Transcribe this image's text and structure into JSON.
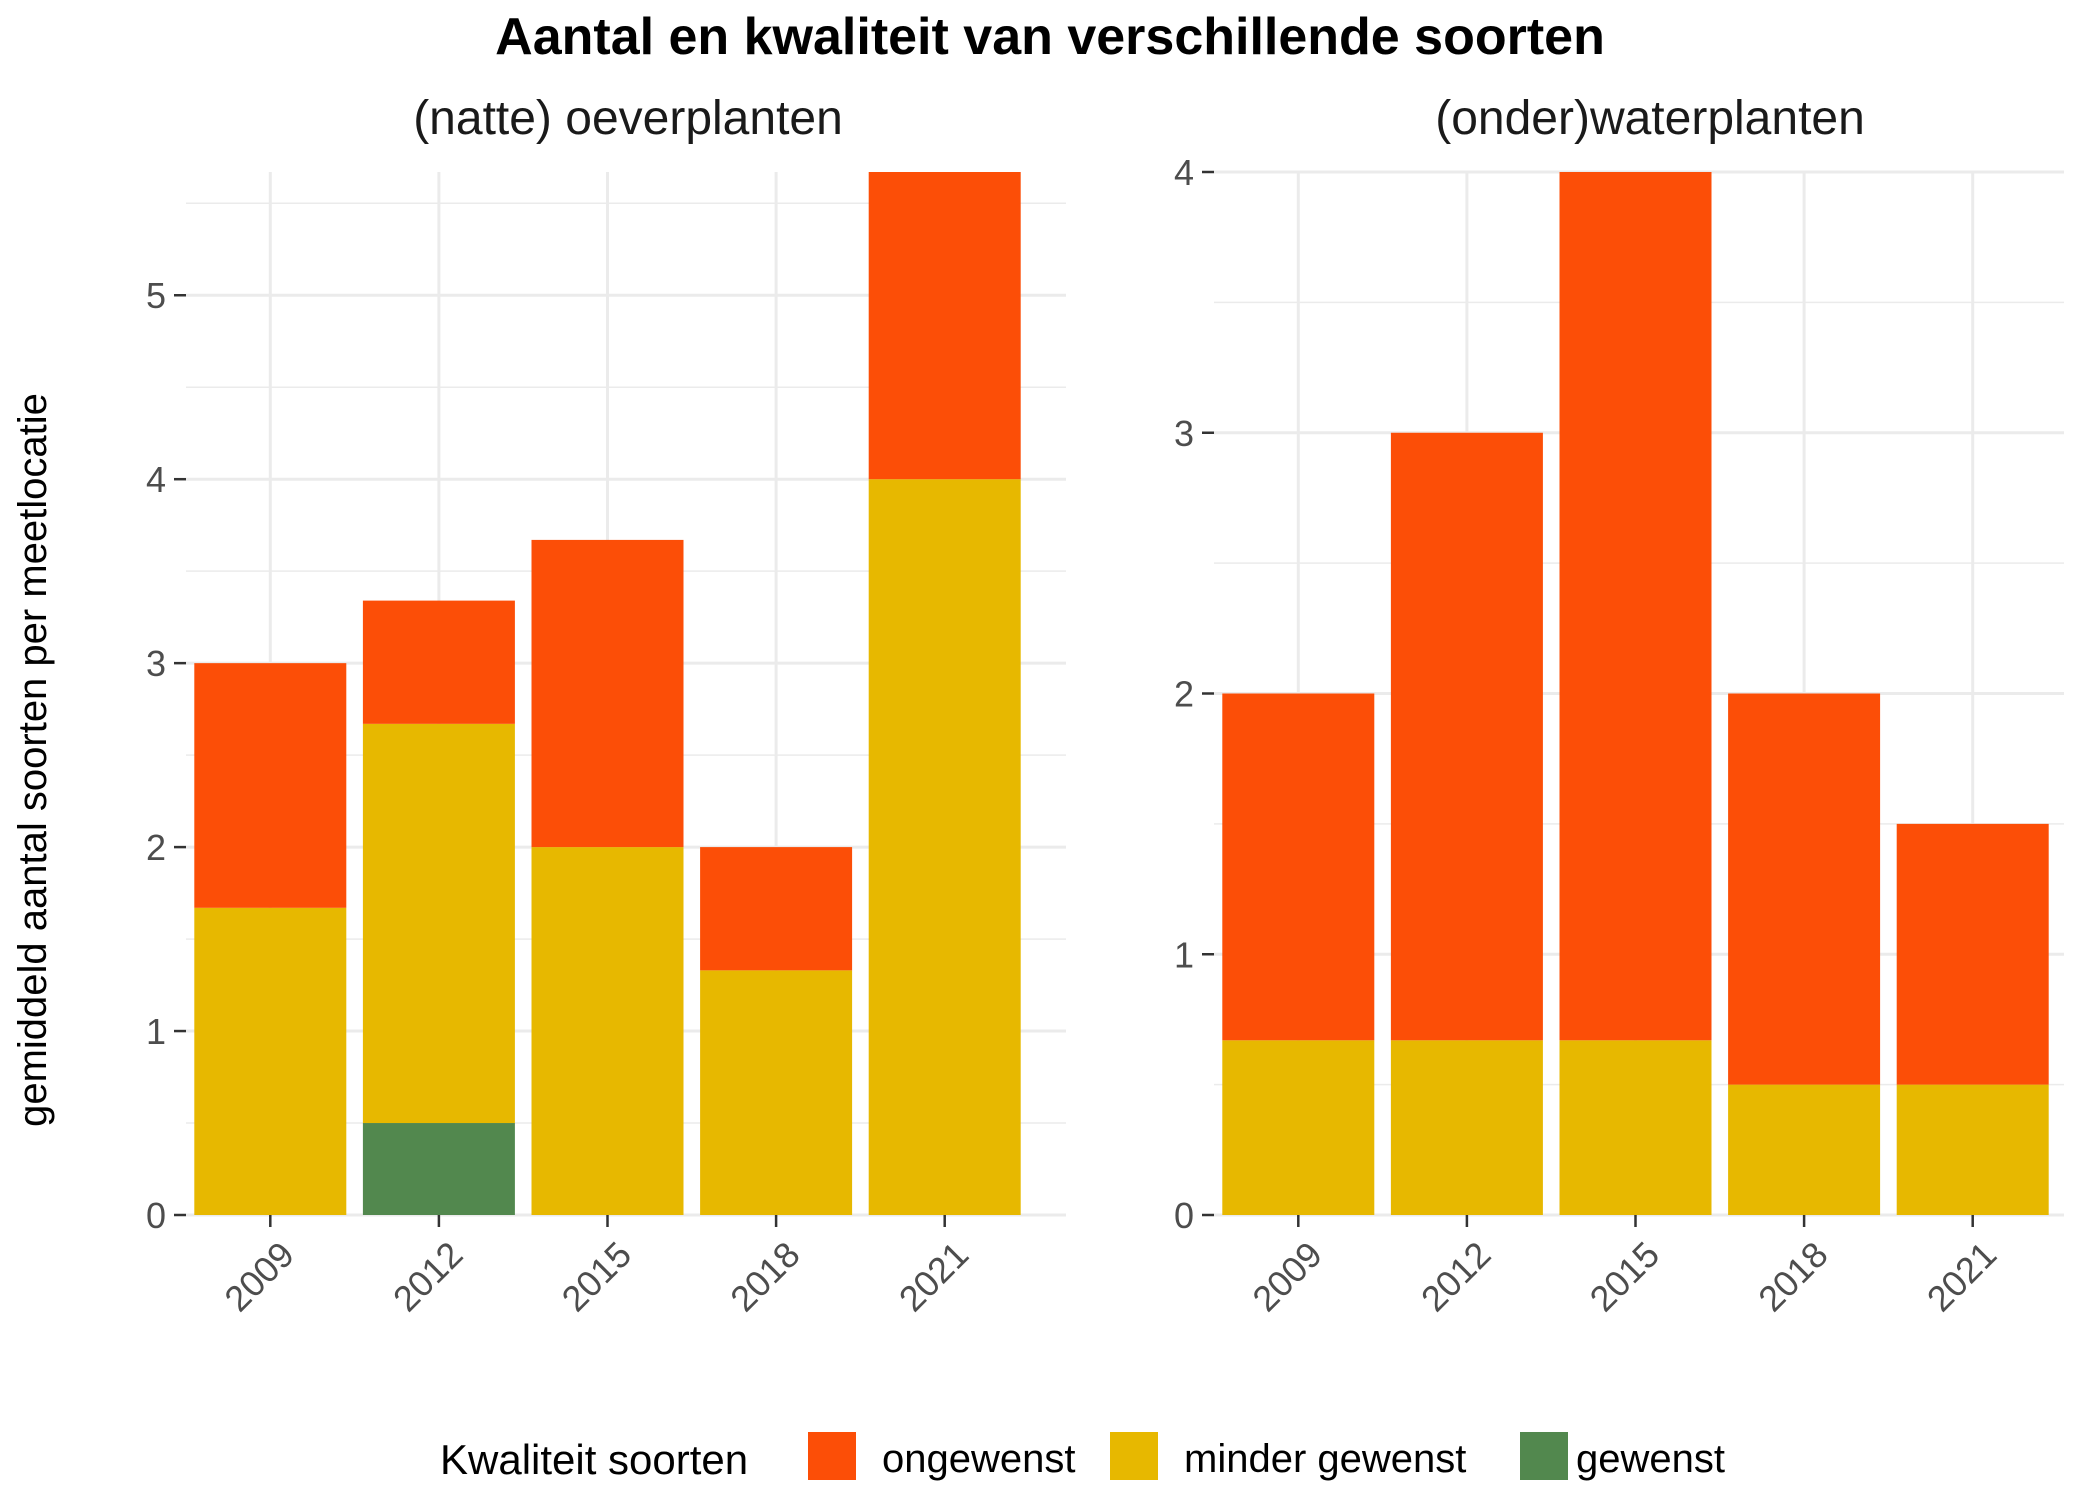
{
  "chart_data": {
    "type": "bar",
    "stacked": true,
    "title": "Aantal en kwaliteit van verschillende soorten",
    "ylabel": "gemiddeld aantal soorten per meetlocatie",
    "categories": [
      "2009",
      "2012",
      "2015",
      "2018",
      "2021"
    ],
    "legend": {
      "title": "Kwaliteit soorten",
      "position": "bottom",
      "items": [
        {
          "label": "ongewenst",
          "color": "#FC4E07"
        },
        {
          "label": "minder gewenst",
          "color": "#E7B800"
        },
        {
          "label": "gewenst",
          "color": "#52884E"
        }
      ]
    },
    "grid": true,
    "panels": [
      {
        "title": "(natte) oeverplanten",
        "ylim": [
          0,
          5.67
        ],
        "yticks": [
          0,
          1,
          2,
          3,
          4,
          5
        ],
        "series": [
          {
            "name": "gewenst",
            "color": "#52884E",
            "values": [
              0,
              0.5,
              0,
              0,
              0
            ]
          },
          {
            "name": "minder gewenst",
            "color": "#E7B800",
            "values": [
              1.67,
              2.17,
              2.0,
              1.33,
              4.0
            ]
          },
          {
            "name": "ongewenst",
            "color": "#FC4E07",
            "values": [
              1.33,
              0.67,
              1.67,
              0.67,
              1.67
            ]
          }
        ]
      },
      {
        "title": "(onder)waterplanten",
        "ylim": [
          0,
          4.0
        ],
        "yticks": [
          0,
          1,
          2,
          3,
          4
        ],
        "series": [
          {
            "name": "gewenst",
            "color": "#52884E",
            "values": [
              0,
              0,
              0,
              0,
              0
            ]
          },
          {
            "name": "minder gewenst",
            "color": "#E7B800",
            "values": [
              0.67,
              0.67,
              0.67,
              0.5,
              0.5
            ]
          },
          {
            "name": "ongewenst",
            "color": "#FC4E07",
            "values": [
              1.33,
              2.33,
              3.33,
              1.5,
              1.0
            ]
          }
        ]
      }
    ]
  }
}
